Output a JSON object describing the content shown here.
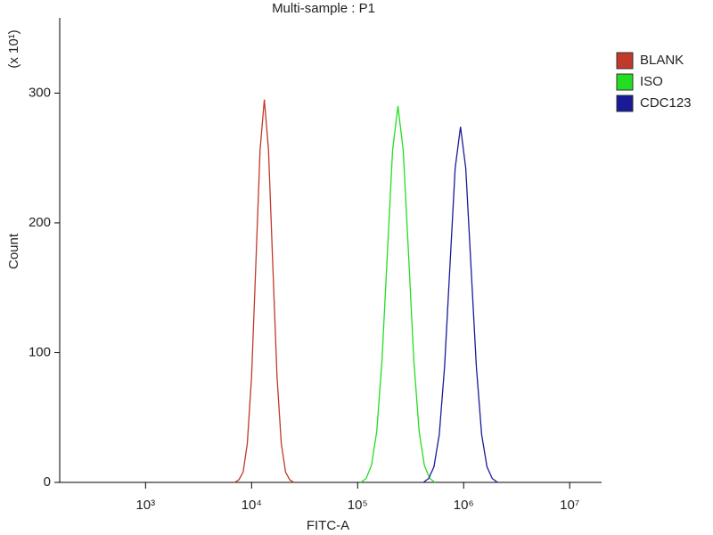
{
  "chart_data": {
    "type": "line",
    "title": "Multi-sample : P1",
    "x_label": "FITC-A",
    "y_label": "Count",
    "y_multiplier": "(x 10¹)",
    "xscale": "log",
    "xlim": [
      155,
      20000000
    ],
    "ylim": [
      0,
      358
    ],
    "xticks": [
      {
        "value": 1000,
        "label": "10³"
      },
      {
        "value": 10000,
        "label": "10⁴"
      },
      {
        "value": 100000,
        "label": "10⁵"
      },
      {
        "value": 1000000,
        "label": "10⁶"
      },
      {
        "value": 10000000,
        "label": "10⁷"
      }
    ],
    "yticks": [
      0,
      100,
      200,
      300
    ],
    "legend": "right",
    "series": [
      {
        "name": "BLANK",
        "color": "#c0392b",
        "x": [
          6918,
          7586,
          8318,
          9120,
          10000,
          10965,
          12023,
          13183,
          14454,
          15849,
          17378,
          19055,
          20893,
          22909,
          25119
        ],
        "values": [
          0,
          2,
          8,
          30,
          82,
          167,
          256,
          295,
          256,
          167,
          82,
          30,
          8,
          2,
          0
        ]
      },
      {
        "name": "ISO",
        "color": "#22dd22",
        "x": [
          107152,
          120226,
          134896,
          151356,
          169824,
          190546,
          213796,
          239883,
          269153,
          301995,
          338844,
          380189,
          426580,
          478630,
          537032
        ],
        "values": [
          0,
          3,
          13,
          39,
          94,
          176,
          256,
          290,
          256,
          176,
          94,
          39,
          13,
          3,
          0
        ]
      },
      {
        "name": "CDC123",
        "color": "#1a1a99",
        "x": [
          416869,
          467735,
          524807,
          588844,
          660693,
          741310,
          831764,
          933254,
          1047129,
          1174898,
          1318257,
          1479108,
          1659587,
          1862087,
          2089296
        ],
        "values": [
          0,
          3,
          12,
          37,
          89,
          166,
          242,
          274,
          242,
          166,
          89,
          37,
          12,
          3,
          0
        ]
      }
    ]
  }
}
